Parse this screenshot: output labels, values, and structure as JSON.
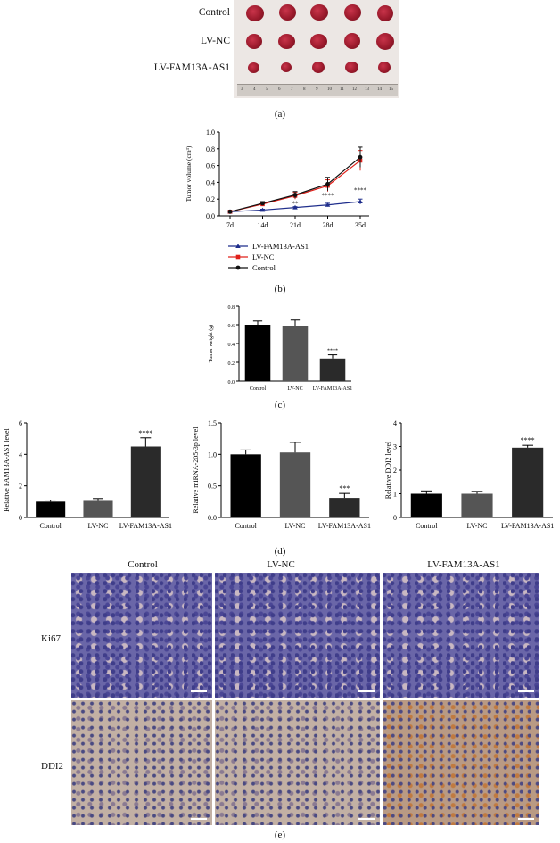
{
  "panel_a": {
    "label": "(a)",
    "rows": [
      "Control",
      "LV-NC",
      "LV-FAM13A-AS1"
    ],
    "ruler_ticks": [
      "3",
      "4",
      "5",
      "6",
      "7",
      "8",
      "9",
      "10",
      "11",
      "12",
      "13",
      "14",
      "15"
    ]
  },
  "panel_b": {
    "label": "(b)"
  },
  "panel_c": {
    "label": "(c)"
  },
  "panel_d": {
    "label": "(d)"
  },
  "panel_e": {
    "label": "(e)",
    "columns": [
      "Control",
      "LV-NC",
      "LV-FAM13A-AS1"
    ],
    "rows": [
      "Ki67",
      "DDI2"
    ]
  },
  "colors": {
    "control": "#111111",
    "lv_nc": "#e0201a",
    "lv_fam": "#1f2e8c",
    "bar_control": "#000000",
    "bar_nc": "#555555",
    "bar_fam": "#2a2a2a"
  },
  "chart_data": [
    {
      "id": "b",
      "type": "line",
      "x": [
        "7d",
        "14d",
        "21d",
        "28d",
        "35d"
      ],
      "ylabel": "Tumor volume (cm³)",
      "ylim": [
        0,
        1.0
      ],
      "yticks": [
        "0.0",
        "0.2",
        "0.4",
        "0.6",
        "0.8",
        "1.0"
      ],
      "series": [
        {
          "name": "LV-FAM13A-AS1",
          "values": [
            0.05,
            0.07,
            0.1,
            0.13,
            0.17
          ],
          "errors": [
            0.01,
            0.01,
            0.01,
            0.02,
            0.03
          ],
          "color": "#1f2e8c",
          "marker": "triangle"
        },
        {
          "name": "LV-NC",
          "values": [
            0.05,
            0.14,
            0.24,
            0.36,
            0.66
          ],
          "errors": [
            0.01,
            0.02,
            0.04,
            0.07,
            0.12
          ],
          "color": "#e0201a",
          "marker": "square"
        },
        {
          "name": "Control",
          "values": [
            0.05,
            0.15,
            0.25,
            0.38,
            0.7
          ],
          "errors": [
            0.01,
            0.02,
            0.04,
            0.08,
            0.12
          ],
          "color": "#111111",
          "marker": "circle"
        }
      ],
      "annotations": [
        {
          "x": "21d",
          "text": "**",
          "y": 0.12
        },
        {
          "x": "28d",
          "text": "****",
          "y": 0.22
        },
        {
          "x": "35d",
          "text": "****",
          "y": 0.28
        }
      ]
    },
    {
      "id": "c",
      "type": "bar",
      "categories": [
        "Control",
        "LV-NC",
        "LV-FAM13A-AS1"
      ],
      "values": [
        0.6,
        0.59,
        0.24
      ],
      "errors": [
        0.04,
        0.06,
        0.04
      ],
      "ylabel": "Tumor weight (g)",
      "ylim": [
        0,
        0.8
      ],
      "yticks": [
        "0.0",
        "0.2",
        "0.4",
        "0.6",
        "0.8"
      ],
      "annotations": [
        {
          "category": "LV-FAM13A-AS1",
          "text": "****"
        }
      ]
    },
    {
      "id": "d1",
      "type": "bar",
      "categories": [
        "Control",
        "LV-NC",
        "LV-FAM13A-AS1"
      ],
      "values": [
        1.0,
        1.05,
        4.5
      ],
      "errors": [
        0.1,
        0.15,
        0.55
      ],
      "ylabel": "Relative FAM13A-AS1 level",
      "ylim": [
        0,
        6
      ],
      "yticks": [
        "0",
        "2",
        "4",
        "6"
      ],
      "annotations": [
        {
          "category": "LV-FAM13A-AS1",
          "text": "****"
        }
      ]
    },
    {
      "id": "d2",
      "type": "bar",
      "categories": [
        "Control",
        "LV-NC",
        "LV-FAM13A-AS1"
      ],
      "values": [
        1.0,
        1.03,
        0.31
      ],
      "errors": [
        0.07,
        0.16,
        0.07
      ],
      "ylabel": "Relative miRNA-205-3p level",
      "ylim": [
        0,
        1.5
      ],
      "yticks": [
        "0.0",
        "0.5",
        "1.0",
        "1.5"
      ],
      "annotations": [
        {
          "category": "LV-FAM13A-AS1",
          "text": "***"
        }
      ]
    },
    {
      "id": "d3",
      "type": "bar",
      "categories": [
        "Control",
        "LV-NC",
        "LV-FAM13A-AS1"
      ],
      "values": [
        1.0,
        1.0,
        2.95
      ],
      "errors": [
        0.12,
        0.1,
        0.1
      ],
      "ylabel": "Relative DDI2 level",
      "ylim": [
        0,
        4
      ],
      "yticks": [
        "0",
        "1",
        "2",
        "3",
        "4"
      ],
      "annotations": [
        {
          "category": "LV-FAM13A-AS1",
          "text": "****"
        }
      ]
    }
  ]
}
